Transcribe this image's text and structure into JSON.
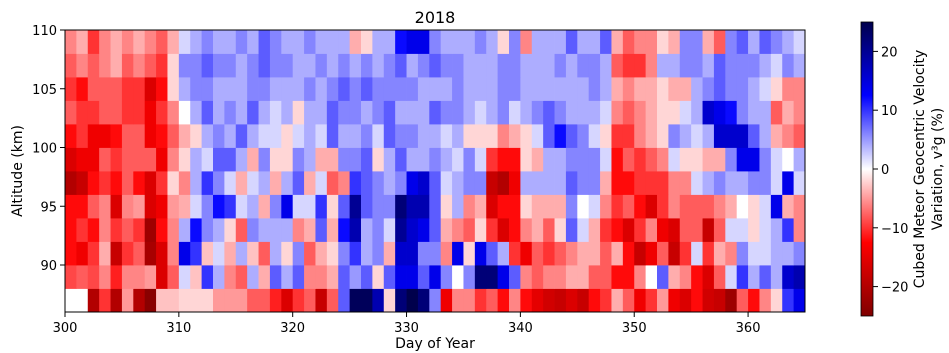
{
  "chart_data": {
    "type": "heatmap",
    "title": "2018",
    "xlabel": "Day of Year",
    "ylabel": "Altitude (km)",
    "xlim": [
      300,
      365
    ],
    "ylim": [
      86,
      110
    ],
    "xticks": [
      300,
      310,
      320,
      330,
      340,
      350,
      360
    ],
    "yticks": [
      90,
      95,
      100,
      105,
      110
    ],
    "colorbar": {
      "label_line1": "Cubed Meteor Geocentric Velocity",
      "label_line2": "Variation, v³g (%)",
      "range": [
        -25,
        25
      ],
      "ticks": [
        -20,
        -10,
        0,
        10,
        20
      ],
      "tick_labels": [
        "−20",
        "−10",
        "0",
        "10",
        "20"
      ],
      "colormap": "seismic",
      "colors": [
        "#7f0000",
        "#ff0000",
        "#ffffff",
        "#0000ff",
        "#00004c"
      ]
    },
    "grid": false,
    "x": [
      300,
      301,
      302,
      303,
      304,
      305,
      306,
      307,
      308,
      309,
      310,
      311,
      312,
      313,
      314,
      315,
      316,
      317,
      318,
      319,
      320,
      321,
      322,
      323,
      324,
      325,
      326,
      327,
      328,
      329,
      330,
      331,
      332,
      333,
      334,
      335,
      336,
      337,
      338,
      339,
      340,
      341,
      342,
      343,
      344,
      345,
      346,
      347,
      348,
      349,
      350,
      351,
      352,
      353,
      354,
      355,
      356,
      357,
      358,
      359,
      360,
      361,
      362,
      363,
      364
    ],
    "y": [
      87,
      89,
      91,
      93,
      95,
      97,
      99,
      101,
      103,
      105,
      107,
      109
    ],
    "z": [
      [
        0,
        0,
        -20,
        -10,
        -20,
        -5,
        -20,
        -24,
        -3,
        -3,
        -2,
        -2,
        -2,
        -5,
        -5,
        -5,
        -8,
        -8,
        -11,
        -16,
        -10,
        -8,
        -18,
        -8,
        8,
        24,
        24,
        18,
        -2,
        22,
        26,
        22,
        6,
        -14,
        -6,
        -6,
        -10,
        -8,
        -12,
        -6,
        -12,
        -15,
        -17,
        -18,
        -16,
        -18,
        -12,
        -10,
        -4,
        -8,
        -14,
        -10,
        -5,
        -14,
        -16,
        -12,
        -17,
        -18,
        -22,
        -8,
        -12,
        -6,
        -2,
        10,
        14
      ],
      [
        -9,
        -8,
        -9,
        -6,
        -11,
        -6,
        -6,
        -5,
        -16,
        -8,
        2,
        -3,
        10,
        4,
        -6,
        -8,
        4,
        -4,
        8,
        4,
        8,
        -6,
        -6,
        -4,
        8,
        5,
        8,
        -2,
        8,
        14,
        14,
        8,
        14,
        6,
        0,
        6,
        22,
        22,
        14,
        8,
        -6,
        -8,
        -6,
        -6,
        -4,
        -4,
        -8,
        -8,
        -12,
        -12,
        -6,
        0,
        8,
        -4,
        -6,
        -12,
        -16,
        -8,
        2,
        10,
        4,
        8,
        4,
        16,
        18
      ],
      [
        -12,
        -14,
        -10,
        -4,
        -18,
        -10,
        -8,
        -21,
        -16,
        -6,
        14,
        10,
        -3,
        2,
        -4,
        4,
        -3,
        -8,
        4,
        -2,
        6,
        -8,
        -4,
        -2,
        6,
        10,
        4,
        6,
        -4,
        16,
        16,
        6,
        6,
        -6,
        14,
        -2,
        14,
        8,
        4,
        -10,
        -14,
        -8,
        -10,
        -8,
        -6,
        -4,
        -4,
        -8,
        -4,
        -12,
        -18,
        -14,
        -8,
        -18,
        -10,
        2,
        -10,
        -4,
        -6,
        6,
        2,
        2,
        4,
        4,
        6
      ],
      [
        -12,
        -10,
        -12,
        -6,
        -10,
        -8,
        -10,
        -22,
        -12,
        -6,
        4,
        12,
        6,
        4,
        -2,
        -8,
        6,
        4,
        4,
        4,
        -6,
        -4,
        8,
        -4,
        12,
        18,
        4,
        6,
        2,
        20,
        16,
        14,
        8,
        -4,
        -6,
        -8,
        -2,
        -10,
        -16,
        -12,
        -6,
        -4,
        -8,
        -2,
        8,
        2,
        -4,
        -10,
        -12,
        -16,
        -10,
        -6,
        -14,
        -16,
        -8,
        -8,
        -18,
        -8,
        2,
        2,
        -2,
        2,
        4,
        10,
        -6
      ],
      [
        -12,
        -12,
        -8,
        -6,
        -16,
        -6,
        -5,
        -16,
        -14,
        -5,
        -4,
        2,
        6,
        12,
        10,
        2,
        4,
        -4,
        6,
        14,
        2,
        2,
        10,
        -2,
        8,
        20,
        8,
        6,
        6,
        22,
        18,
        18,
        8,
        -2,
        4,
        -6,
        -4,
        -16,
        -12,
        -12,
        -2,
        -4,
        -4,
        -4,
        6,
        0,
        2,
        -6,
        -10,
        -8,
        -12,
        -16,
        -10,
        -6,
        -8,
        -8,
        -8,
        -6,
        -4,
        0,
        -2,
        2,
        14,
        -4,
        -6
      ],
      [
        -20,
        -18,
        -12,
        -10,
        -12,
        -8,
        -12,
        -16,
        -10,
        -2,
        -6,
        4,
        10,
        6,
        2,
        -4,
        2,
        4,
        -4,
        4,
        8,
        -4,
        2,
        -8,
        -6,
        10,
        8,
        6,
        4,
        6,
        14,
        16,
        8,
        2,
        4,
        6,
        6,
        -18,
        -20,
        -14,
        4,
        4,
        4,
        4,
        8,
        6,
        6,
        -4,
        -12,
        -12,
        -10,
        -10,
        -10,
        -6,
        -6,
        2,
        4,
        6,
        4,
        4,
        6,
        6,
        2,
        14,
        2
      ],
      [
        -16,
        -14,
        -14,
        -8,
        -10,
        -8,
        -8,
        -8,
        -14,
        -6,
        -2,
        4,
        2,
        8,
        8,
        4,
        -4,
        6,
        -2,
        -2,
        6,
        4,
        -4,
        -4,
        6,
        6,
        8,
        -2,
        4,
        8,
        4,
        4,
        6,
        4,
        2,
        6,
        2,
        -10,
        -12,
        -12,
        -2,
        -4,
        4,
        4,
        6,
        6,
        6,
        2,
        -12,
        -8,
        -10,
        -8,
        -6,
        2,
        -2,
        -2,
        -4,
        -4,
        6,
        14,
        14,
        6,
        2,
        0,
        4
      ],
      [
        -12,
        -10,
        -14,
        -14,
        -12,
        -8,
        -8,
        -14,
        -12,
        -8,
        -4,
        -2,
        4,
        6,
        4,
        8,
        4,
        2,
        2,
        -2,
        2,
        4,
        2,
        8,
        4,
        4,
        6,
        2,
        8,
        6,
        6,
        4,
        4,
        2,
        4,
        -2,
        -2,
        -2,
        -6,
        -4,
        -2,
        2,
        8,
        12,
        8,
        6,
        2,
        -2,
        -10,
        -10,
        -6,
        -4,
        -2,
        6,
        4,
        2,
        4,
        16,
        16,
        16,
        8,
        4,
        -4,
        -6,
        -8
      ],
      [
        -8,
        -10,
        -10,
        -8,
        -8,
        -10,
        -10,
        -14,
        -10,
        -6,
        0,
        4,
        8,
        4,
        6,
        4,
        8,
        4,
        2,
        4,
        -2,
        4,
        4,
        8,
        6,
        6,
        4,
        6,
        8,
        4,
        4,
        4,
        8,
        6,
        6,
        4,
        2,
        4,
        6,
        2,
        4,
        6,
        8,
        6,
        4,
        4,
        4,
        2,
        -6,
        -8,
        -6,
        -4,
        -2,
        -2,
        2,
        4,
        16,
        14,
        12,
        6,
        4,
        4,
        -8,
        -4,
        -6
      ],
      [
        -10,
        -12,
        -8,
        -8,
        -8,
        -10,
        -10,
        -16,
        -12,
        -2,
        4,
        6,
        6,
        4,
        4,
        4,
        6,
        6,
        4,
        4,
        4,
        6,
        4,
        6,
        8,
        6,
        8,
        6,
        6,
        6,
        6,
        4,
        4,
        4,
        6,
        4,
        4,
        4,
        6,
        6,
        4,
        4,
        4,
        4,
        4,
        4,
        6,
        4,
        -4,
        -6,
        -4,
        -4,
        -2,
        -4,
        -4,
        4,
        6,
        8,
        6,
        6,
        4,
        2,
        -2,
        -6,
        -6
      ],
      [
        -8,
        -6,
        -8,
        -6,
        -4,
        -8,
        -6,
        -8,
        -10,
        -2,
        6,
        6,
        8,
        6,
        6,
        4,
        6,
        8,
        6,
        6,
        4,
        4,
        6,
        4,
        6,
        4,
        6,
        4,
        6,
        8,
        4,
        6,
        8,
        6,
        6,
        4,
        4,
        4,
        6,
        6,
        4,
        4,
        4,
        6,
        4,
        6,
        6,
        4,
        -8,
        -10,
        -10,
        -6,
        4,
        4,
        6,
        6,
        4,
        8,
        6,
        6,
        6,
        4,
        2,
        6,
        4
      ],
      [
        -6,
        -4,
        -10,
        -6,
        -4,
        -6,
        -4,
        -6,
        -8,
        -4,
        2,
        4,
        6,
        4,
        4,
        6,
        4,
        8,
        6,
        4,
        4,
        6,
        4,
        4,
        4,
        -4,
        -2,
        4,
        4,
        12,
        14,
        14,
        6,
        4,
        4,
        4,
        6,
        4,
        -2,
        6,
        -6,
        4,
        4,
        4,
        8,
        4,
        4,
        8,
        -4,
        -8,
        -6,
        -6,
        -2,
        -4,
        6,
        6,
        -4,
        -8,
        6,
        8,
        4,
        8,
        6,
        4,
        2
      ]
    ]
  }
}
